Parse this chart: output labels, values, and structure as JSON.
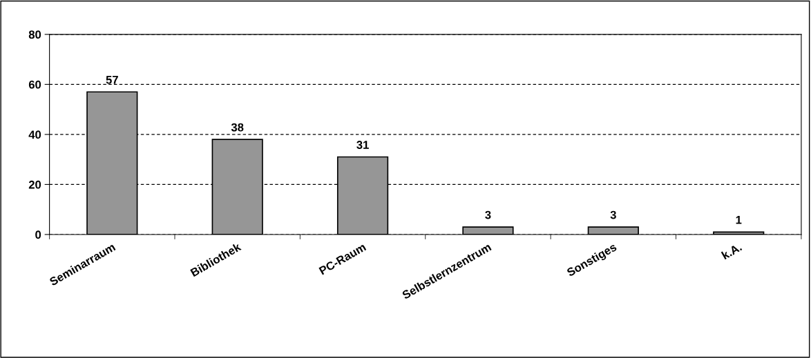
{
  "chart_data": {
    "type": "bar",
    "categories": [
      "Seminarraum",
      "Bibliothek",
      "PC-Raum",
      "Selbstlernzentrum",
      "Sonstiges",
      "k.A."
    ],
    "values": [
      57,
      38,
      31,
      3,
      3,
      1
    ],
    "color": "#969696",
    "ylim": [
      0,
      80
    ],
    "yticks": [
      0,
      20,
      40,
      60,
      80
    ],
    "grid": "y",
    "data_labels": true,
    "legend": false
  }
}
